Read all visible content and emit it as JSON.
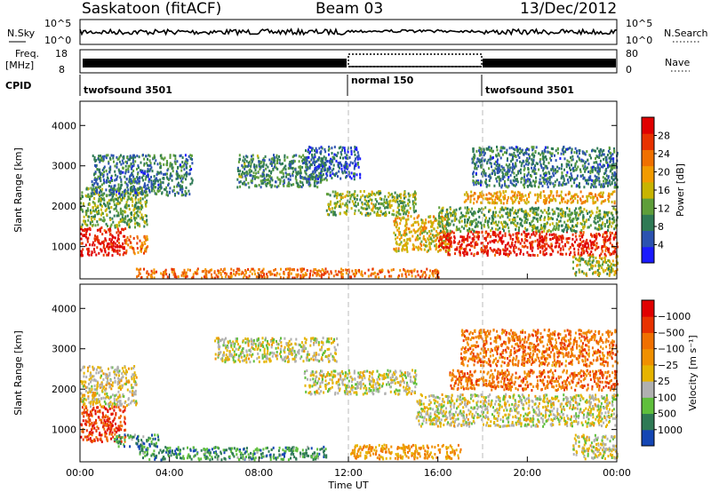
{
  "header": {
    "station": "Saskatoon (fitACF)",
    "beam": "Beam 03",
    "date": "13/Dec/2012"
  },
  "sky_panel": {
    "left_label": "N.Sky",
    "left_ticks": [
      "10^5",
      "10^0"
    ],
    "right_ticks": [
      "10^5",
      "10^0"
    ],
    "right_label": "N.Search"
  },
  "freq_panel": {
    "left_label_1": "Freq.",
    "left_label_2": "[MHz]",
    "left_ticks": [
      "18",
      "8"
    ],
    "right_ticks": [
      "80",
      "0"
    ],
    "right_label": "Nave"
  },
  "cpid": {
    "label": "CPID",
    "segments": [
      {
        "name": "twofsound 3501",
        "start_hour": 0,
        "end_hour": 12
      },
      {
        "name": "normal 150",
        "start_hour": 12,
        "end_hour": 18
      },
      {
        "name": "twofsound 3501",
        "start_hour": 18,
        "end_hour": 24
      }
    ]
  },
  "x_axis": {
    "title": "Time UT",
    "tick_labels": [
      "00:00",
      "04:00",
      "08:00",
      "12:00",
      "16:00",
      "20:00",
      "00:00"
    ]
  },
  "chart_data": [
    {
      "type": "heatmap",
      "name": "power",
      "ylabel": "Slant Range [km]",
      "ylim": [
        200,
        4600
      ],
      "ytick_labels": [
        "1000",
        "2000",
        "3000",
        "4000"
      ],
      "x_range_hours": [
        0,
        24
      ],
      "colorbar_title": "Power [dB]",
      "colorbar_ticks": [
        "4",
        "8",
        "12",
        "16",
        "20",
        "24",
        "28"
      ],
      "colorbar_colors": [
        "#1a1aff",
        "#2b52b0",
        "#2f7a55",
        "#5e9e3a",
        "#c8b400",
        "#f29b00",
        "#f07000",
        "#e83200",
        "#e00000"
      ],
      "scatter_regions": [
        {
          "t0": 0.0,
          "t1": 2.0,
          "r0": 800,
          "r1": 1500,
          "level": 0.92
        },
        {
          "t0": 2.0,
          "t1": 3.0,
          "r0": 850,
          "r1": 1300,
          "level": 0.7
        },
        {
          "t0": 0.0,
          "t1": 3.0,
          "r0": 1500,
          "r1": 2500,
          "level": 0.38
        },
        {
          "t0": 0.5,
          "t1": 5.0,
          "r0": 2300,
          "r1": 3300,
          "level": 0.25
        },
        {
          "t0": 2.5,
          "t1": 16.0,
          "r0": 250,
          "r1": 480,
          "level": 0.72
        },
        {
          "t0": 7.0,
          "t1": 11.0,
          "r0": 2500,
          "r1": 3300,
          "level": 0.3
        },
        {
          "t0": 10.0,
          "t1": 12.5,
          "r0": 2700,
          "r1": 3500,
          "level": 0.2
        },
        {
          "t0": 11.0,
          "t1": 15.0,
          "r0": 1800,
          "r1": 2400,
          "level": 0.42
        },
        {
          "t0": 14.0,
          "t1": 16.5,
          "r0": 900,
          "r1": 1800,
          "level": 0.55
        },
        {
          "t0": 16.0,
          "t1": 24.0,
          "r0": 800,
          "r1": 1400,
          "level": 0.88
        },
        {
          "t0": 16.0,
          "t1": 24.0,
          "r0": 1400,
          "r1": 2000,
          "level": 0.38
        },
        {
          "t0": 17.0,
          "t1": 24.0,
          "r0": 2100,
          "r1": 2400,
          "level": 0.6
        },
        {
          "t0": 17.5,
          "t1": 24.0,
          "r0": 2500,
          "r1": 3500,
          "level": 0.25
        },
        {
          "t0": 22.0,
          "t1": 24.0,
          "r0": 300,
          "r1": 800,
          "level": 0.45
        }
      ]
    },
    {
      "type": "heatmap",
      "name": "velocity",
      "ylabel": "Slant Range [km]",
      "ylim": [
        200,
        4600
      ],
      "ytick_labels": [
        "1000",
        "2000",
        "3000",
        "4000"
      ],
      "x_range_hours": [
        0,
        24
      ],
      "colorbar_title": "Velocity [m s⁻¹]",
      "colorbar_ticks": [
        "1000",
        "500",
        "100",
        "25",
        "−25",
        "−100",
        "−500",
        "−1000"
      ],
      "colorbar_colors": [
        "#1446b4",
        "#2f7a55",
        "#5fbf3c",
        "#b0b0b0",
        "#e6b400",
        "#f09000",
        "#f07000",
        "#e83200",
        "#e00000"
      ],
      "scatter_regions": [
        {
          "t0": 0.0,
          "t1": 2.0,
          "r0": 700,
          "r1": 1600,
          "level": 0.85
        },
        {
          "t0": 0.0,
          "t1": 2.5,
          "r0": 1600,
          "r1": 2600,
          "level": 0.45
        },
        {
          "t0": 1.5,
          "t1": 3.5,
          "r0": 600,
          "r1": 900,
          "level": 0.2
        },
        {
          "t0": 2.5,
          "t1": 11.0,
          "r0": 280,
          "r1": 600,
          "level": 0.2
        },
        {
          "t0": 6.0,
          "t1": 11.5,
          "r0": 2700,
          "r1": 3300,
          "level": 0.42
        },
        {
          "t0": 10.0,
          "t1": 15.0,
          "r0": 1900,
          "r1": 2500,
          "level": 0.42
        },
        {
          "t0": 12.0,
          "t1": 17.0,
          "r0": 300,
          "r1": 650,
          "level": 0.6
        },
        {
          "t0": 15.0,
          "t1": 24.0,
          "r0": 1100,
          "r1": 1900,
          "level": 0.42
        },
        {
          "t0": 16.5,
          "t1": 24.0,
          "r0": 2000,
          "r1": 2500,
          "level": 0.72
        },
        {
          "t0": 17.0,
          "t1": 24.0,
          "r0": 2600,
          "r1": 3500,
          "level": 0.7
        },
        {
          "t0": 22.0,
          "t1": 24.0,
          "r0": 300,
          "r1": 900,
          "level": 0.42
        }
      ]
    }
  ]
}
